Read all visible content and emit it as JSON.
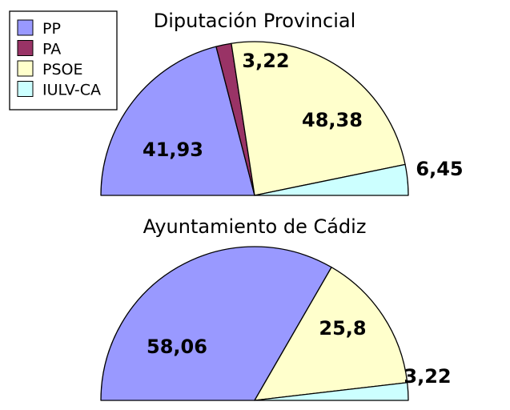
{
  "legend": [
    {
      "name": "PP",
      "color": "#9999ff"
    },
    {
      "name": "PA",
      "color": "#993366"
    },
    {
      "name": "PSOE",
      "color": "#ffffcc"
    },
    {
      "name": "IULV-CA",
      "color": "#ccffff"
    }
  ],
  "chart_data": [
    {
      "type": "pie",
      "variant": "semicircle",
      "title": "Diputación Provincial",
      "categories": [
        "PP",
        "PA",
        "PSOE",
        "IULV-CA"
      ],
      "values": [
        41.93,
        3.22,
        48.38,
        6.45
      ],
      "labels": [
        "41,93",
        "3,22",
        "48,38",
        "6,45"
      ]
    },
    {
      "type": "pie",
      "variant": "semicircle",
      "title": "Ayuntamiento de Cádiz",
      "categories": [
        "PP",
        "PSOE",
        "IULV-CA"
      ],
      "values": [
        58.06,
        25.8,
        3.22
      ],
      "labels": [
        "58,06",
        "25,8",
        "3,22"
      ]
    }
  ]
}
